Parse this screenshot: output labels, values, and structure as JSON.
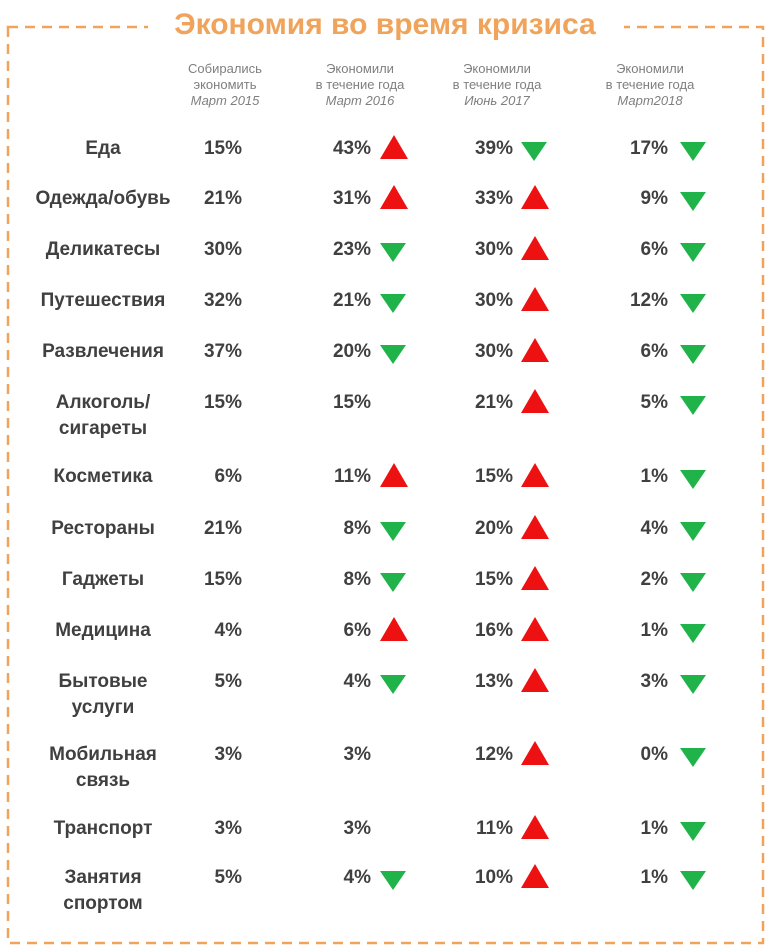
{
  "chart_data": {
    "type": "table",
    "title": "Экономия во время кризиса",
    "columns": [
      {
        "lines": [
          "Собирались",
          "экономить"
        ],
        "period": "Март 2015"
      },
      {
        "lines": [
          "Экономили",
          "в течение года"
        ],
        "period": "Март 2016"
      },
      {
        "lines": [
          "Экономили",
          "в течение года"
        ],
        "period": "Июнь 2017"
      },
      {
        "lines": [
          "Экономили",
          "в течение года"
        ],
        "period": "Март2018"
      }
    ],
    "rows": [
      {
        "category": [
          "Еда"
        ],
        "values": [
          "15%",
          "43%",
          "39%",
          "17%"
        ],
        "trend": [
          null,
          "up",
          "down",
          "down"
        ]
      },
      {
        "category": [
          "Одежда/обувь"
        ],
        "values": [
          "21%",
          "31%",
          "33%",
          "9%"
        ],
        "trend": [
          null,
          "up",
          "up",
          "down"
        ]
      },
      {
        "category": [
          "Деликатесы"
        ],
        "values": [
          "30%",
          "23%",
          "30%",
          "6%"
        ],
        "trend": [
          null,
          "down",
          "up",
          "down"
        ]
      },
      {
        "category": [
          "Путешествия"
        ],
        "values": [
          "32%",
          "21%",
          "30%",
          "12%"
        ],
        "trend": [
          null,
          "down",
          "up",
          "down"
        ]
      },
      {
        "category": [
          "Развлечения"
        ],
        "values": [
          "37%",
          "20%",
          "30%",
          "6%"
        ],
        "trend": [
          null,
          "down",
          "up",
          "down"
        ]
      },
      {
        "category": [
          "Алкоголь/",
          "сигареты"
        ],
        "values": [
          "15%",
          "15%",
          "21%",
          "5%"
        ],
        "trend": [
          null,
          null,
          "up",
          "down"
        ]
      },
      {
        "category": [
          "Косметика"
        ],
        "values": [
          "6%",
          "11%",
          "15%",
          "1%"
        ],
        "trend": [
          null,
          "up",
          "up",
          "down"
        ]
      },
      {
        "category": [
          "Рестораны"
        ],
        "values": [
          "21%",
          "8%",
          "20%",
          "4%"
        ],
        "trend": [
          null,
          "down",
          "up",
          "down"
        ]
      },
      {
        "category": [
          "Гаджеты"
        ],
        "values": [
          "15%",
          "8%",
          "15%",
          "2%"
        ],
        "trend": [
          null,
          "down",
          "up",
          "down"
        ]
      },
      {
        "category": [
          "Медицина"
        ],
        "values": [
          "4%",
          "6%",
          "16%",
          "1%"
        ],
        "trend": [
          null,
          "up",
          "up",
          "down"
        ]
      },
      {
        "category": [
          "Бытовые",
          "услуги"
        ],
        "values": [
          "5%",
          "4%",
          "13%",
          "3%"
        ],
        "trend": [
          null,
          "down",
          "up",
          "down"
        ]
      },
      {
        "category": [
          "Мобильная",
          "связь"
        ],
        "values": [
          "3%",
          "3%",
          "12%",
          "0%"
        ],
        "trend": [
          null,
          null,
          "up",
          "down"
        ]
      },
      {
        "category": [
          "Транспорт"
        ],
        "values": [
          "3%",
          "3%",
          "11%",
          "1%"
        ],
        "trend": [
          null,
          null,
          "up",
          "down"
        ]
      },
      {
        "category": [
          "Занятия",
          "спортом"
        ],
        "values": [
          "5%",
          "4%",
          "10%",
          "1%"
        ],
        "trend": [
          null,
          "down",
          "up",
          "down"
        ]
      }
    ]
  },
  "colors": {
    "title": "#f0a35a",
    "border": "#f0a35a",
    "text": "#404040",
    "header": "#7f7f7f",
    "up": "#ee1111",
    "down": "#1fb34a"
  }
}
